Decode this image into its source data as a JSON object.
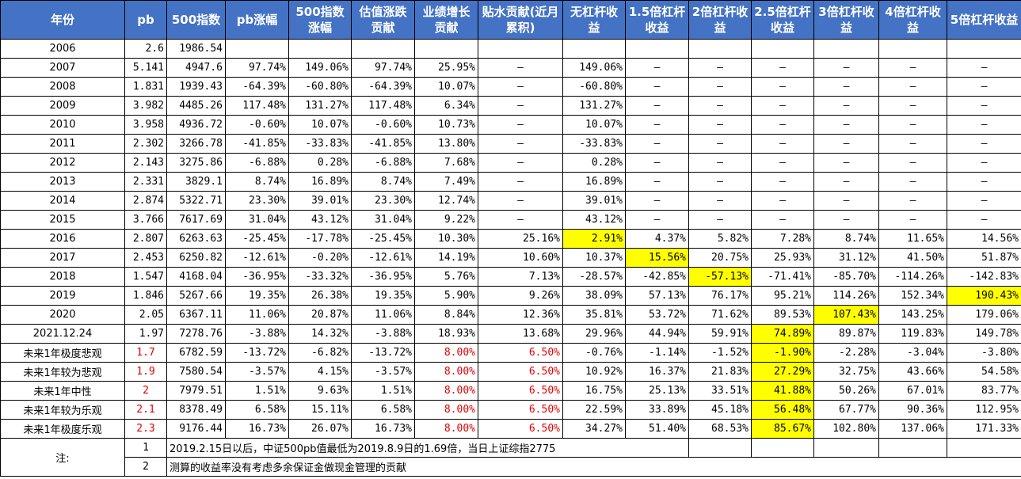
{
  "headers": [
    "年份",
    "pb",
    "500指数",
    "pb涨幅",
    "500指数涨幅",
    "估值涨跌贡献",
    "业绩增长贡献",
    "贴水贡献(近月累积)",
    "无杠杆收益",
    "1.5倍杠杆收益",
    "2倍杠杆收益",
    "2.5倍杠杆收益",
    "3倍杠杆收益",
    "4倍杠杆收益",
    "5倍杠杆收益"
  ],
  "rows": [
    {
      "year": "2006",
      "pb": "2.6",
      "idx": "1986.54",
      "pbchg": "",
      "idxchg": "",
      "val": "",
      "earn": "",
      "disc": "",
      "r1": "",
      "r15": "",
      "r2": "",
      "r25": "",
      "r3": "",
      "r4": "",
      "r5": ""
    },
    {
      "year": "2007",
      "pb": "5.141",
      "idx": "4947.6",
      "pbchg": "97.74%",
      "idxchg": "149.06%",
      "val": "97.74%",
      "earn": "25.95%",
      "disc": "–",
      "r1": "149.06%",
      "r15": "–",
      "r2": "–",
      "r25": "–",
      "r3": "–",
      "r4": "–",
      "r5": "–"
    },
    {
      "year": "2008",
      "pb": "1.831",
      "idx": "1939.43",
      "pbchg": "-64.39%",
      "idxchg": "-60.80%",
      "val": "-64.39%",
      "earn": "10.07%",
      "disc": "–",
      "r1": "-60.80%",
      "r15": "–",
      "r2": "–",
      "r25": "–",
      "r3": "–",
      "r4": "–",
      "r5": "–"
    },
    {
      "year": "2009",
      "pb": "3.982",
      "idx": "4485.26",
      "pbchg": "117.48%",
      "idxchg": "131.27%",
      "val": "117.48%",
      "earn": "6.34%",
      "disc": "–",
      "r1": "131.27%",
      "r15": "–",
      "r2": "–",
      "r25": "–",
      "r3": "–",
      "r4": "–",
      "r5": "–"
    },
    {
      "year": "2010",
      "pb": "3.958",
      "idx": "4936.72",
      "pbchg": "-0.60%",
      "idxchg": "10.07%",
      "val": "-0.60%",
      "earn": "10.73%",
      "disc": "–",
      "r1": "10.07%",
      "r15": "–",
      "r2": "–",
      "r25": "–",
      "r3": "–",
      "r4": "–",
      "r5": "–"
    },
    {
      "year": "2011",
      "pb": "2.302",
      "idx": "3266.78",
      "pbchg": "-41.85%",
      "idxchg": "-33.83%",
      "val": "-41.85%",
      "earn": "13.80%",
      "disc": "–",
      "r1": "-33.83%",
      "r15": "–",
      "r2": "–",
      "r25": "–",
      "r3": "–",
      "r4": "–",
      "r5": "–"
    },
    {
      "year": "2012",
      "pb": "2.143",
      "idx": "3275.86",
      "pbchg": "-6.88%",
      "idxchg": "0.28%",
      "val": "-6.88%",
      "earn": "7.68%",
      "disc": "–",
      "r1": "0.28%",
      "r15": "–",
      "r2": "–",
      "r25": "–",
      "r3": "–",
      "r4": "–",
      "r5": "–"
    },
    {
      "year": "2013",
      "pb": "2.331",
      "idx": "3829.1",
      "pbchg": "8.74%",
      "idxchg": "16.89%",
      "val": "8.74%",
      "earn": "7.49%",
      "disc": "–",
      "r1": "16.89%",
      "r15": "–",
      "r2": "–",
      "r25": "–",
      "r3": "–",
      "r4": "–",
      "r5": "–"
    },
    {
      "year": "2014",
      "pb": "2.874",
      "idx": "5322.71",
      "pbchg": "23.30%",
      "idxchg": "39.01%",
      "val": "23.30%",
      "earn": "12.74%",
      "disc": "–",
      "r1": "39.01%",
      "r15": "–",
      "r2": "–",
      "r25": "–",
      "r3": "–",
      "r4": "–",
      "r5": "–"
    },
    {
      "year": "2015",
      "pb": "3.766",
      "idx": "7617.69",
      "pbchg": "31.04%",
      "idxchg": "43.12%",
      "val": "31.04%",
      "earn": "9.22%",
      "disc": "–",
      "r1": "43.12%",
      "r15": "–",
      "r2": "–",
      "r25": "–",
      "r3": "–",
      "r4": "–",
      "r5": "–"
    },
    {
      "year": "2016",
      "pb": "2.807",
      "idx": "6263.63",
      "pbchg": "-25.45%",
      "idxchg": "-17.78%",
      "val": "-25.45%",
      "earn": "10.30%",
      "disc": "25.16%",
      "r1": "2.91%",
      "r15": "4.37%",
      "r2": "5.82%",
      "r25": "7.28%",
      "r3": "8.74%",
      "r4": "11.65%",
      "r5": "14.56%"
    },
    {
      "year": "2017",
      "pb": "2.453",
      "idx": "6250.82",
      "pbchg": "-12.61%",
      "idxchg": "-0.20%",
      "val": "-12.61%",
      "earn": "14.19%",
      "disc": "10.60%",
      "r1": "10.37%",
      "r15": "15.56%",
      "r2": "20.75%",
      "r25": "25.93%",
      "r3": "31.12%",
      "r4": "41.50%",
      "r5": "51.87%"
    },
    {
      "year": "2018",
      "pb": "1.547",
      "idx": "4168.04",
      "pbchg": "-36.95%",
      "idxchg": "-33.32%",
      "val": "-36.95%",
      "earn": "5.76%",
      "disc": "7.13%",
      "r1": "-28.57%",
      "r15": "-42.85%",
      "r2": "-57.13%",
      "r25": "-71.41%",
      "r3": "-85.70%",
      "r4": "-114.26%",
      "r5": "-142.83%"
    },
    {
      "year": "2019",
      "pb": "1.846",
      "idx": "5267.66",
      "pbchg": "19.35%",
      "idxchg": "26.38%",
      "val": "19.35%",
      "earn": "5.90%",
      "disc": "9.26%",
      "r1": "38.09%",
      "r15": "57.13%",
      "r2": "76.17%",
      "r25": "95.21%",
      "r3": "114.26%",
      "r4": "152.34%",
      "r5": "190.43%"
    },
    {
      "year": "2020",
      "pb": "2.05",
      "idx": "6367.11",
      "pbchg": "11.06%",
      "idxchg": "20.87%",
      "val": "11.06%",
      "earn": "8.84%",
      "disc": "12.36%",
      "r1": "35.81%",
      "r15": "53.72%",
      "r2": "71.62%",
      "r25": "89.53%",
      "r3": "107.43%",
      "r4": "143.25%",
      "r5": "179.06%"
    },
    {
      "year": "2021.12.24",
      "pb": "1.97",
      "idx": "7278.76",
      "pbchg": "-3.88%",
      "idxchg": "14.32%",
      "val": "-3.88%",
      "earn": "18.93%",
      "disc": "13.68%",
      "r1": "29.96%",
      "r15": "44.94%",
      "r2": "59.91%",
      "r25": "74.89%",
      "r3": "89.87%",
      "r4": "119.83%",
      "r5": "149.78%"
    },
    {
      "year": "未来1年极度悲观",
      "pb": "1.7",
      "idx": "6782.59",
      "pbchg": "-13.72%",
      "idxchg": "-6.82%",
      "val": "-13.72%",
      "earn": "8.00%",
      "disc": "6.50%",
      "r1": "-0.76%",
      "r15": "-1.14%",
      "r2": "-1.52%",
      "r25": "-1.90%",
      "r3": "-2.28%",
      "r4": "-3.04%",
      "r5": "-3.80%"
    },
    {
      "year": "未来1年较为悲观",
      "pb": "1.9",
      "idx": "7580.54",
      "pbchg": "-3.57%",
      "idxchg": "4.15%",
      "val": "-3.57%",
      "earn": "8.00%",
      "disc": "6.50%",
      "r1": "10.92%",
      "r15": "16.37%",
      "r2": "21.83%",
      "r25": "27.29%",
      "r3": "32.75%",
      "r4": "43.66%",
      "r5": "54.58%"
    },
    {
      "year": "未来1年中性",
      "pb": "2",
      "idx": "7979.51",
      "pbchg": "1.51%",
      "idxchg": "9.63%",
      "val": "1.51%",
      "earn": "8.00%",
      "disc": "6.50%",
      "r1": "16.75%",
      "r15": "25.13%",
      "r2": "33.51%",
      "r25": "41.88%",
      "r3": "50.26%",
      "r4": "67.01%",
      "r5": "83.77%"
    },
    {
      "year": "未来1年较为乐观",
      "pb": "2.1",
      "idx": "8378.49",
      "pbchg": "6.58%",
      "idxchg": "15.11%",
      "val": "6.58%",
      "earn": "8.00%",
      "disc": "6.50%",
      "r1": "22.59%",
      "r15": "33.89%",
      "r2": "45.18%",
      "r25": "56.48%",
      "r3": "67.77%",
      "r4": "90.36%",
      "r5": "112.95%"
    },
    {
      "year": "未来1年极度乐观",
      "pb": "2.3",
      "idx": "9176.44",
      "pbchg": "16.73%",
      "idxchg": "26.07%",
      "val": "16.73%",
      "earn": "8.00%",
      "disc": "6.50%",
      "r1": "34.27%",
      "r15": "51.40%",
      "r2": "68.53%",
      "r25": "85.67%",
      "r3": "102.80%",
      "r4": "137.06%",
      "r5": "171.33%"
    }
  ],
  "notes": {
    "label": "注:",
    "items": [
      {
        "num": "1",
        "text": "2019.2.15日以后，中证500pb值最低为2019.8.9日的1.69倍，当日上证综指2775"
      },
      {
        "num": "2",
        "text": "测算的收益率没有考虑多余保证金做现金管理的贡献"
      }
    ]
  },
  "colors": {
    "header_bg": "#4472c4",
    "header_text": "#ffffff",
    "highlight": "#ffff00",
    "red_text": "#e00000"
  }
}
